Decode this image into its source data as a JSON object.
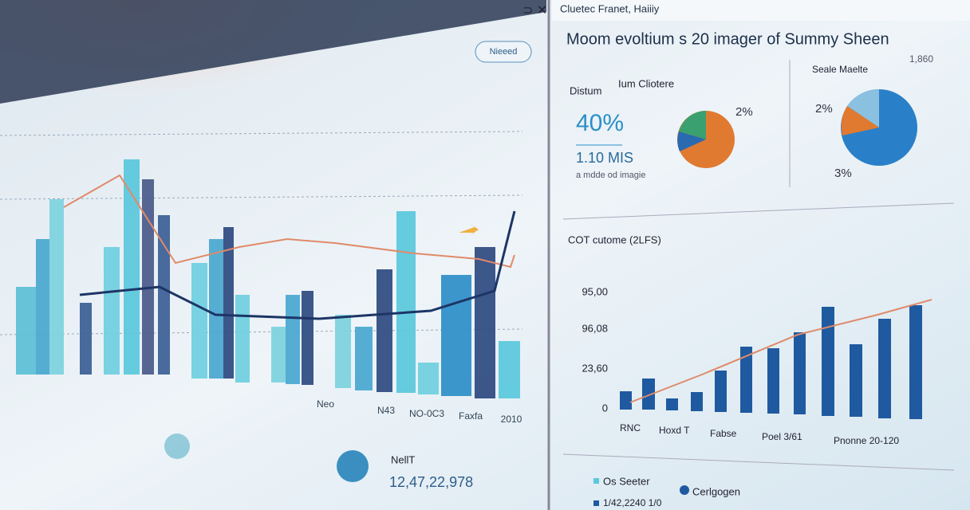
{
  "left_panel": {
    "button": "Nieeed",
    "x_labels": [
      "Neo",
      "N43",
      "NO-0C3",
      "Faxfa",
      "2010"
    ],
    "footer": {
      "label": "NellT",
      "value": "12,47,22,978"
    }
  },
  "right_panel": {
    "header": "Cluetec Franet, Haiiiy",
    "title": "Moom evoltium s 20 imager of Summy Sheen",
    "kpi": {
      "dropdown1": "Distum",
      "dropdown2": "Ium Cliotere",
      "value": "40%",
      "sub_value": "1.10 MIS",
      "caption": "a mdde od imagie"
    },
    "pie1_label": "2%",
    "pie2": {
      "title": "Seale Maelte",
      "extra": "1,860",
      "labels": [
        "2%",
        "3%"
      ]
    },
    "bar_chart": {
      "title": "COT cutome (2LFS)",
      "y_labels": [
        "95,00",
        "96,08",
        "23,60",
        "0"
      ],
      "x_labels": [
        "RNC",
        "Hoxd T",
        "Fabse",
        "Poel 3/61",
        "Pnonne 20-120"
      ]
    },
    "legend": [
      "Os Seeter",
      "Cerlgogen",
      "1/42,2240 1/0"
    ]
  }
}
